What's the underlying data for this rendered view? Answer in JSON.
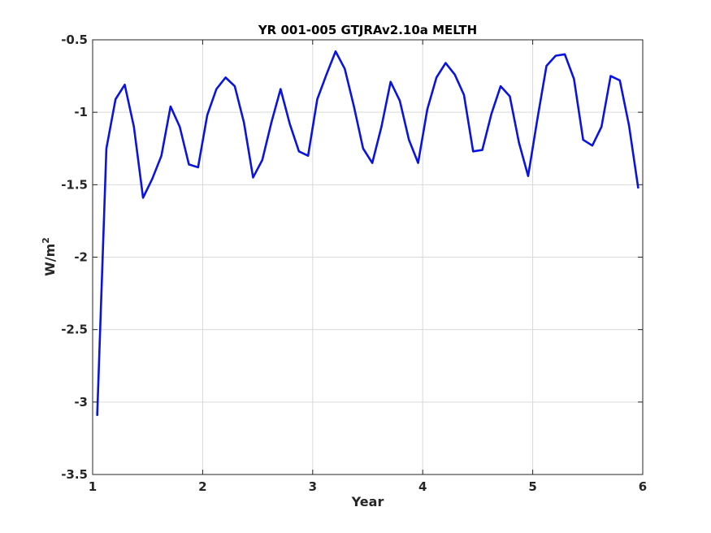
{
  "chart_data": {
    "type": "line",
    "title": "YR 001-005 GTJRAv2.10a MELTH",
    "xlabel": "Year",
    "ylabel_main": "W/m",
    "ylabel_sup": "2",
    "xlim": [
      1,
      6
    ],
    "ylim": [
      -3.5,
      -0.5
    ],
    "xticks": [
      1,
      2,
      3,
      4,
      5,
      6
    ],
    "yticks": [
      -3.5,
      -3,
      -2.5,
      -2,
      -1.5,
      -1,
      -0.5
    ],
    "grid": true,
    "line_color": "#0a14e0",
    "series": [
      {
        "x": [
          1.0417,
          1.125,
          1.2083,
          1.2917,
          1.375,
          1.4583,
          1.5417,
          1.625,
          1.7083,
          1.7917,
          1.875,
          1.9583,
          2.0417,
          2.125,
          2.2083,
          2.2917,
          2.375,
          2.4583,
          2.5417,
          2.625,
          2.7083,
          2.7917,
          2.875,
          2.9583,
          3.0417,
          3.125,
          3.2083,
          3.2917,
          3.375,
          3.4583,
          3.5417,
          3.625,
          3.7083,
          3.7917,
          3.875,
          3.9583,
          4.0417,
          4.125,
          4.2083,
          4.2917,
          4.375,
          4.4583,
          4.5417,
          4.625,
          4.7083,
          4.7917,
          4.875,
          4.9583,
          5.0417,
          5.125,
          5.2083,
          5.2917,
          5.375,
          5.4583,
          5.5417,
          5.625,
          5.7083,
          5.7917,
          5.875,
          5.9583
        ],
        "values": [
          -3.09,
          -1.25,
          -0.91,
          -0.81,
          -1.1,
          -1.59,
          -1.46,
          -1.3,
          -0.96,
          -1.1,
          -1.36,
          -1.38,
          -1.02,
          -0.84,
          -0.76,
          -0.82,
          -1.07,
          -1.45,
          -1.33,
          -1.07,
          -0.84,
          -1.08,
          -1.27,
          -1.3,
          -0.91,
          -0.74,
          -0.58,
          -0.7,
          -0.96,
          -1.25,
          -1.35,
          -1.1,
          -0.79,
          -0.92,
          -1.19,
          -1.35,
          -0.98,
          -0.76,
          -0.66,
          -0.74,
          -0.88,
          -1.27,
          -1.26,
          -1.01,
          -0.82,
          -0.89,
          -1.21,
          -1.44,
          -1.05,
          -0.68,
          -0.61,
          -0.6,
          -0.77,
          -1.19,
          -1.23,
          -1.1,
          -0.75,
          -0.78,
          -1.09,
          -1.52
        ]
      }
    ]
  }
}
